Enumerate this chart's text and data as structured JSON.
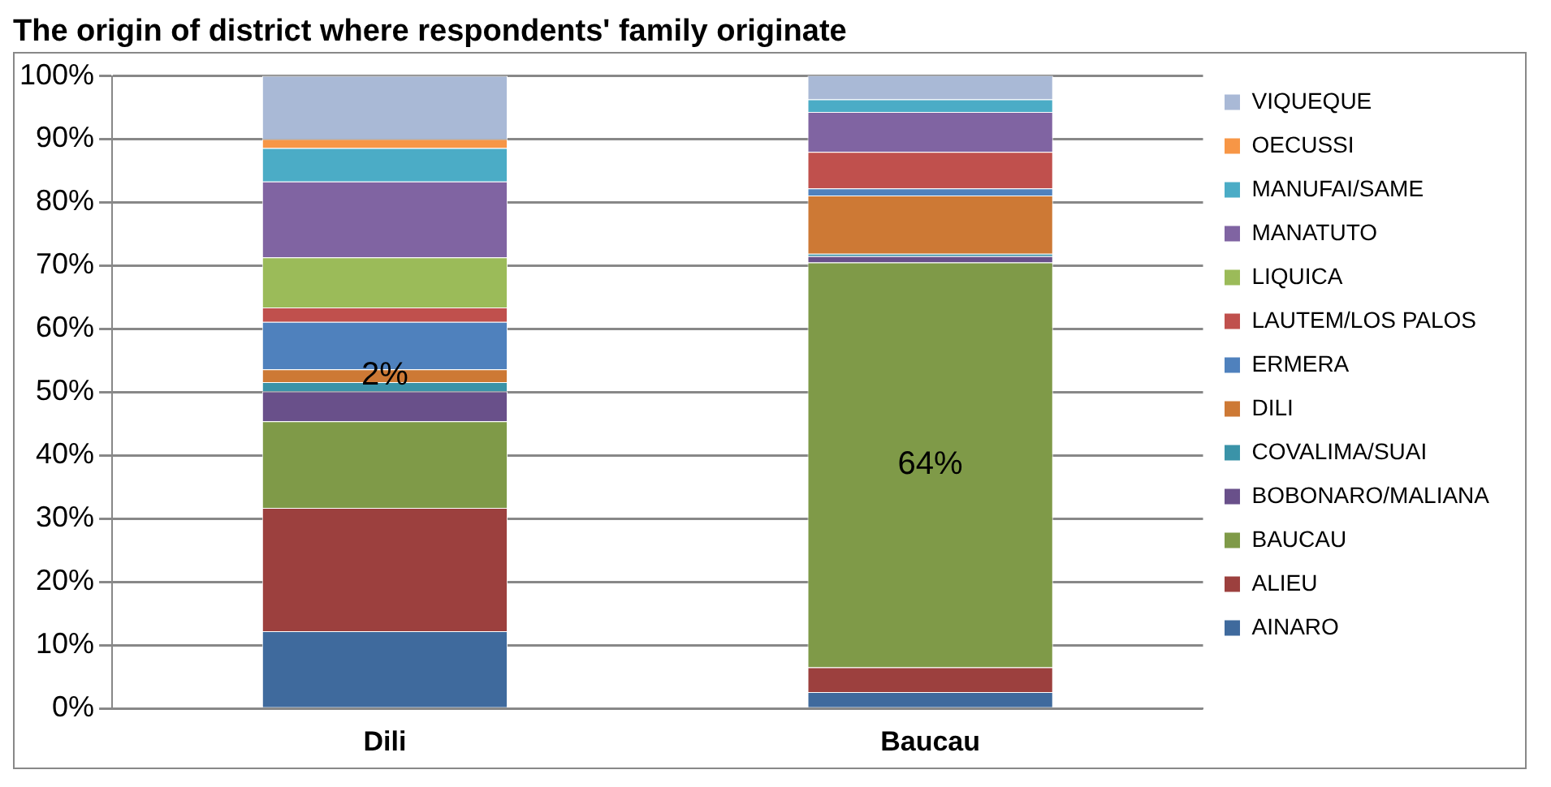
{
  "chart_data": {
    "type": "bar",
    "title": "The origin of district where respondents' family originate",
    "categories": [
      "Dili",
      "Baucau"
    ],
    "stacked": true,
    "ylim": [
      0,
      100
    ],
    "yticks": [
      {
        "value": 0,
        "label": "0%"
      },
      {
        "value": 10,
        "label": "10%"
      },
      {
        "value": 20,
        "label": "20%"
      },
      {
        "value": 30,
        "label": "30%"
      },
      {
        "value": 40,
        "label": "40%"
      },
      {
        "value": 50,
        "label": "50%"
      },
      {
        "value": 60,
        "label": "60%"
      },
      {
        "value": 70,
        "label": "70%"
      },
      {
        "value": 80,
        "label": "80%"
      },
      {
        "value": 90,
        "label": "90%"
      },
      {
        "value": 100,
        "label": "100%"
      }
    ],
    "grid": "y",
    "legend": "right",
    "series": [
      {
        "name": "AINARO",
        "color": "#3f6a9d",
        "values": [
          12.2,
          2.6
        ]
      },
      {
        "name": "ALIEU",
        "color": "#9c403e",
        "values": [
          19.5,
          3.9
        ]
      },
      {
        "name": "BAUCAU",
        "color": "#7f9a48",
        "values": [
          13.7,
          64
        ],
        "value_labels": [
          null,
          "64%"
        ]
      },
      {
        "name": "BOBONARO/MALIANA",
        "color": "#69508a",
        "values": [
          4.7,
          1.0
        ]
      },
      {
        "name": "COVALIMA/SUAI",
        "color": "#3a93a8",
        "values": [
          1.5,
          0.4
        ]
      },
      {
        "name": "DILI",
        "color": "#cd7935",
        "values": [
          2,
          9.2
        ],
        "value_labels": [
          "2%",
          null
        ]
      },
      {
        "name": "ERMERA",
        "color": "#4f81bd",
        "values": [
          7.5,
          1.1
        ]
      },
      {
        "name": "LAUTEM/LOS PALOS",
        "color": "#c0504d",
        "values": [
          2.3,
          5.8
        ]
      },
      {
        "name": "LIQUICA",
        "color": "#9bbb59",
        "values": [
          7.9,
          0
        ]
      },
      {
        "name": "MANATUTO",
        "color": "#8064a2",
        "values": [
          12,
          6.3
        ]
      },
      {
        "name": "MANUFAI/SAME",
        "color": "#4bacc6",
        "values": [
          5.3,
          2
        ]
      },
      {
        "name": "OECUSSI",
        "color": "#f79646",
        "values": [
          1.4,
          0
        ]
      },
      {
        "name": "VIQUEQUE",
        "color": "#a9b9d6",
        "values": [
          10,
          3.8
        ]
      }
    ]
  }
}
